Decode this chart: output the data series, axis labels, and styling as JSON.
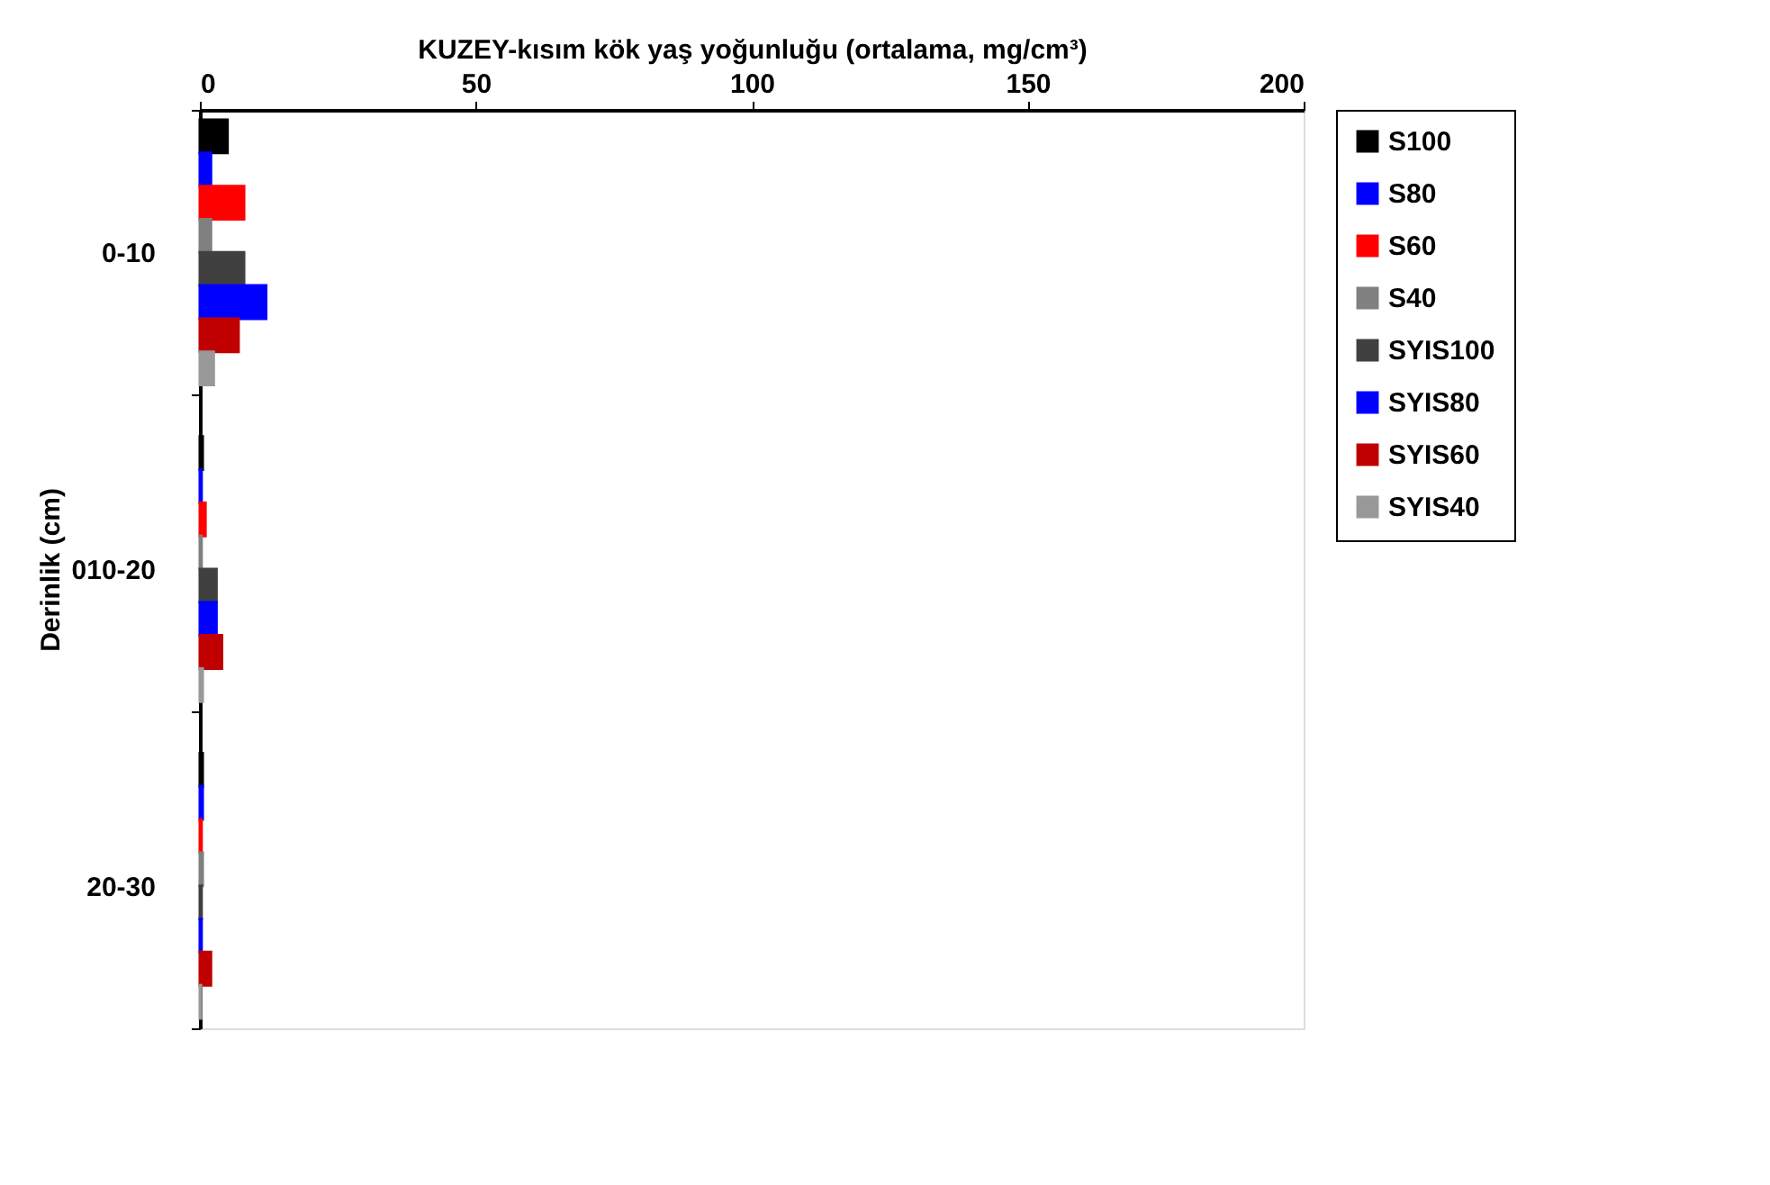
{
  "chart_data": {
    "type": "bar",
    "orientation": "horizontal",
    "xlabel": "KUZEY-kısım  kök yaş yoğunluğu (ortalama, mg/cm³)",
    "ylabel": "Derinlik (cm)",
    "categories": [
      "0-10",
      "010-20",
      "20-30"
    ],
    "series": [
      {
        "name": "S100",
        "color": "#000000",
        "values": [
          5,
          0.5,
          0.5
        ]
      },
      {
        "name": "S80",
        "color": "#0000ff",
        "values": [
          2,
          0.3,
          0.5
        ]
      },
      {
        "name": "S60",
        "color": "#ff0000",
        "values": [
          8,
          1,
          0.3
        ]
      },
      {
        "name": "S40",
        "color": "#808080",
        "values": [
          2,
          0.3,
          0.5
        ]
      },
      {
        "name": "SYIS100",
        "color": "#404040",
        "values": [
          8,
          3,
          0.3
        ]
      },
      {
        "name": "SYIS80",
        "color": "#0000ff",
        "values": [
          12,
          3,
          0.3
        ]
      },
      {
        "name": "SYIS60",
        "color": "#c00000",
        "values": [
          7,
          4,
          2
        ]
      },
      {
        "name": "SYIS40",
        "color": "#999999",
        "values": [
          2.5,
          0.5,
          0.2
        ]
      }
    ],
    "xlim": [
      0,
      200
    ],
    "xticks": [
      0,
      50,
      100,
      150,
      200
    ],
    "grid": false,
    "legend": "right"
  }
}
